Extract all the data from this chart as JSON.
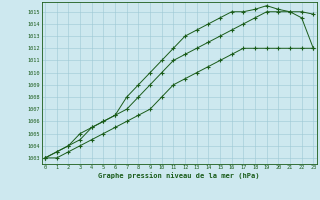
{
  "line1": [
    1003,
    1003.5,
    1004,
    1004.5,
    1005.5,
    1006,
    1006.5,
    1008,
    1009,
    1010,
    1011,
    1012,
    1013,
    1013.5,
    1014,
    1014.5,
    1015,
    1015,
    1015.2,
    1015.5,
    1015.2,
    1015,
    1014.5,
    1012
  ],
  "line2": [
    1003,
    1003.5,
    1004,
    1005,
    1005.5,
    1006,
    1006.5,
    1007,
    1008,
    1009,
    1010,
    1011,
    1011.5,
    1012,
    1012.5,
    1013,
    1013.5,
    1014,
    1014.5,
    1015,
    1015,
    1015,
    1015,
    1014.8
  ],
  "line3": [
    1003,
    1003,
    1003.5,
    1004,
    1004.5,
    1005,
    1005.5,
    1006,
    1006.5,
    1007,
    1008,
    1009,
    1009.5,
    1010,
    1010.5,
    1011,
    1011.5,
    1012,
    1012,
    1012,
    1012,
    1012,
    1012,
    1012
  ],
  "x": [
    0,
    1,
    2,
    3,
    4,
    5,
    6,
    7,
    8,
    9,
    10,
    11,
    12,
    13,
    14,
    15,
    16,
    17,
    18,
    19,
    20,
    21,
    22,
    23
  ],
  "line_color": "#1a5c1a",
  "bg_color": "#cde8ef",
  "grid_color": "#9ec8d5",
  "ylabel_ticks": [
    1003,
    1004,
    1005,
    1006,
    1007,
    1008,
    1009,
    1010,
    1011,
    1012,
    1013,
    1014,
    1015
  ],
  "xlabel": "Graphe pression niveau de la mer (hPa)",
  "ylim": [
    1002.5,
    1015.8
  ],
  "xlim": [
    -0.3,
    23.3
  ]
}
